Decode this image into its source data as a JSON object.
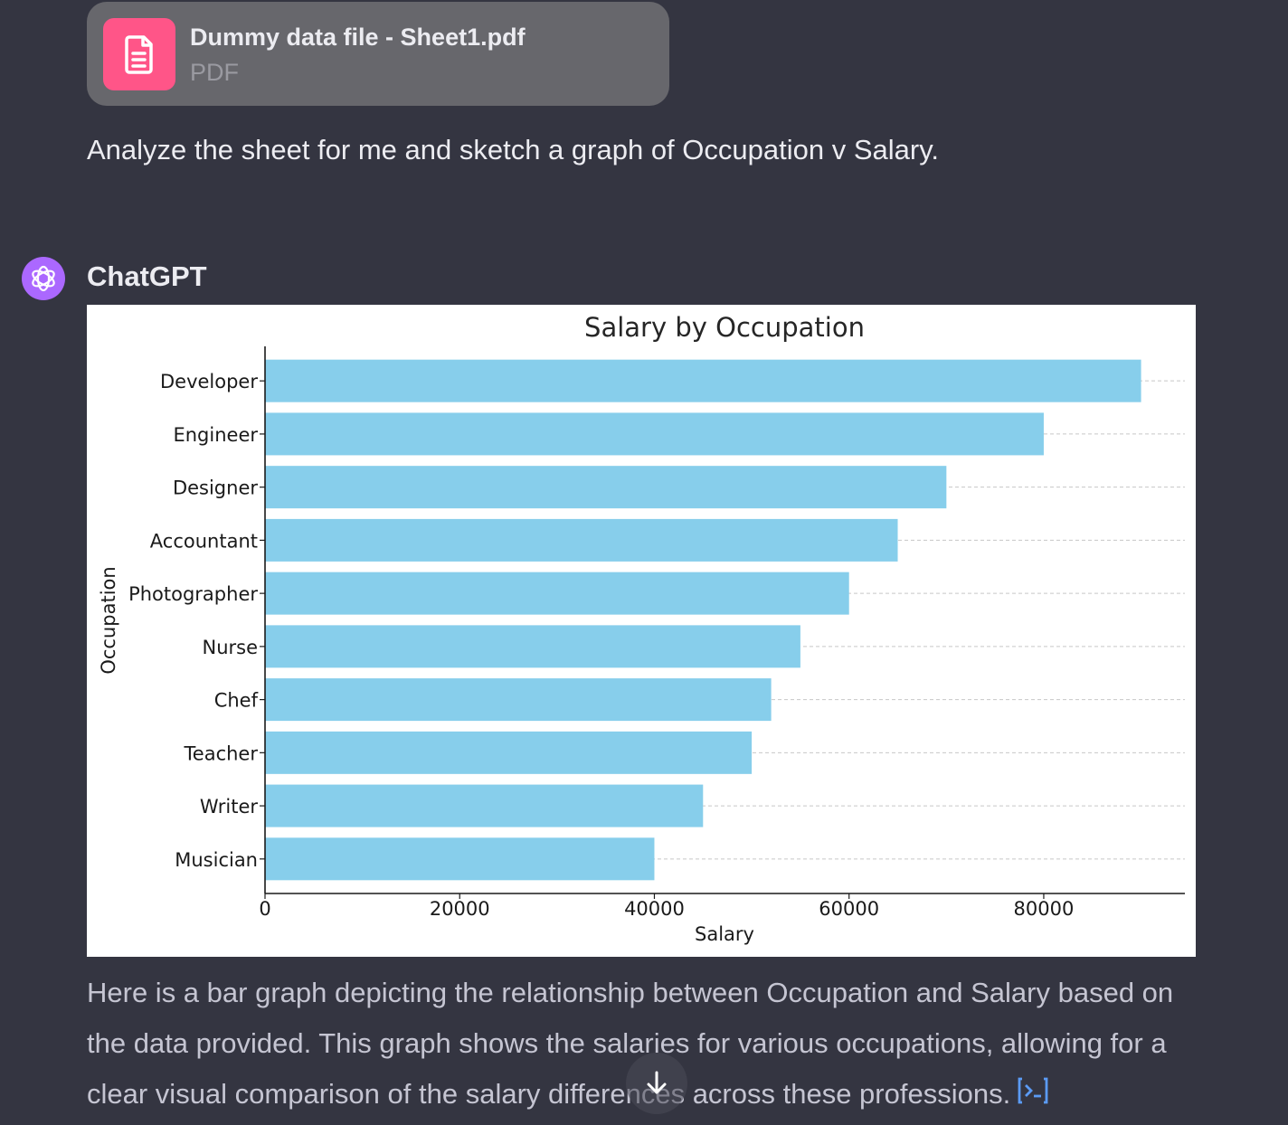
{
  "attachment": {
    "file_name": "Dummy data file - Sheet1.pdf",
    "file_type": "PDF",
    "icon": "document-icon",
    "icon_color": "#ff5588"
  },
  "user_message": "Analyze the sheet for me and sketch a graph of Occupation v Salary.",
  "assistant": {
    "name": "ChatGPT",
    "avatar_color": "#ab68ff",
    "response": "Here is a bar graph depicting the relationship between Occupation and Salary based on the data provided. This graph shows the salaries for various occupations, allowing for a clear visual comparison of the salary differences across these professions.",
    "citation_icon": "code-interpreter-icon"
  },
  "chart_data": {
    "type": "bar",
    "orientation": "horizontal",
    "title": "Salary by Occupation",
    "xlabel": "Salary",
    "ylabel": "Occupation",
    "categories": [
      "Developer",
      "Engineer",
      "Designer",
      "Accountant",
      "Photographer",
      "Nurse",
      "Chef",
      "Teacher",
      "Writer",
      "Musician"
    ],
    "values": [
      90000,
      80000,
      70000,
      65000,
      60000,
      55000,
      52000,
      50000,
      45000,
      40000
    ],
    "xlim": [
      0,
      94500
    ],
    "xticks": [
      0,
      20000,
      40000,
      60000,
      80000
    ],
    "grid": "dashed horizontal",
    "bar_color": "#87ceeb"
  },
  "ui": {
    "scroll_down_icon": "arrow-down-icon"
  }
}
